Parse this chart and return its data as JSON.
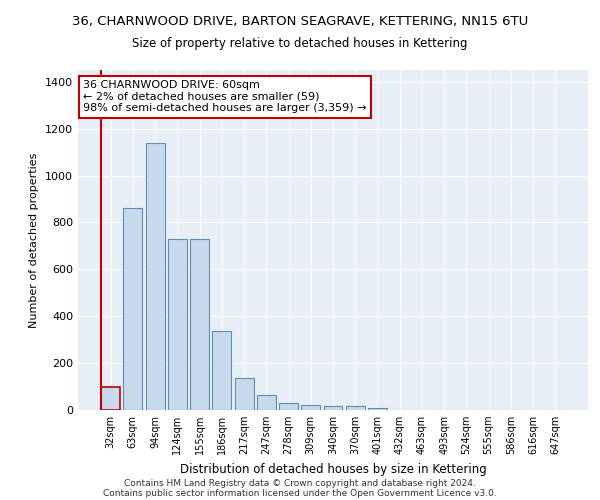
{
  "title": "36, CHARNWOOD DRIVE, BARTON SEAGRAVE, KETTERING, NN15 6TU",
  "subtitle": "Size of property relative to detached houses in Kettering",
  "xlabel": "Distribution of detached houses by size in Kettering",
  "ylabel": "Number of detached properties",
  "categories": [
    "32sqm",
    "63sqm",
    "94sqm",
    "124sqm",
    "155sqm",
    "186sqm",
    "217sqm",
    "247sqm",
    "278sqm",
    "309sqm",
    "340sqm",
    "370sqm",
    "401sqm",
    "432sqm",
    "463sqm",
    "493sqm",
    "524sqm",
    "555sqm",
    "586sqm",
    "616sqm",
    "647sqm"
  ],
  "values": [
    100,
    860,
    1140,
    730,
    730,
    335,
    135,
    65,
    30,
    20,
    15,
    15,
    10,
    0,
    0,
    0,
    0,
    0,
    0,
    0,
    0
  ],
  "bar_color": "#c9d9ec",
  "bar_edge_color": "#5b8db8",
  "highlight_bar_edge_color": "#c00000",
  "vline_color": "#c00000",
  "annotation_text": "36 CHARNWOOD DRIVE: 60sqm\n← 2% of detached houses are smaller (59)\n98% of semi-detached houses are larger (3,359) →",
  "annotation_box_color": "white",
  "annotation_box_edge": "#c00000",
  "ylim": [
    0,
    1450
  ],
  "yticks": [
    0,
    200,
    400,
    600,
    800,
    1000,
    1200,
    1400
  ],
  "background_color": "#e8eef5",
  "footer1": "Contains HM Land Registry data © Crown copyright and database right 2024.",
  "footer2": "Contains public sector information licensed under the Open Government Licence v3.0."
}
